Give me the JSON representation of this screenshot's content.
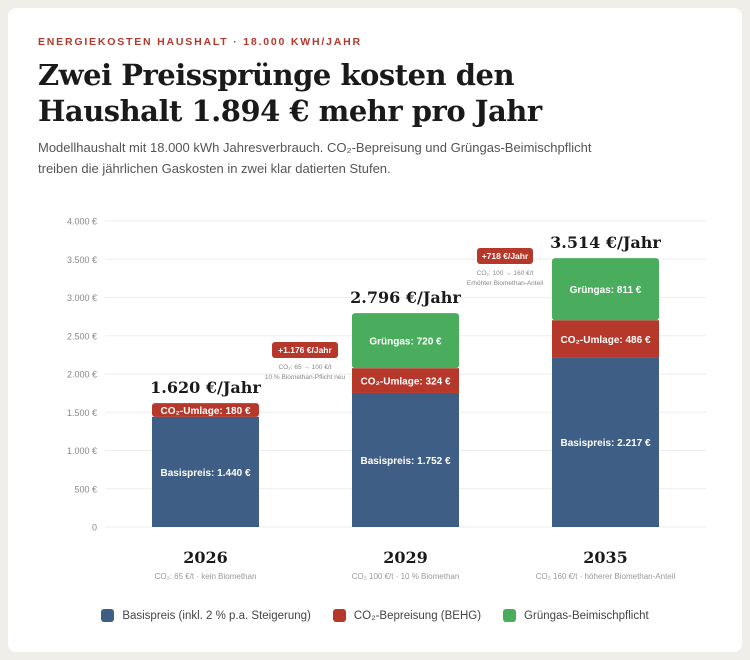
{
  "kicker": "ENERGIEKOSTEN HAUSHALT · 18.000 KWH/JAHR",
  "title": "Zwei Preissprünge kosten den Haushalt 1.894 € mehr pro Jahr",
  "subtitle": "Modellhaushalt mit 18.000 kWh Jahresverbrauch. CO₂-Bepreisung und Grüngas-Beimischpflicht treiben die jährlichen Gaskosten in zwei klar datierten Stufen.",
  "colors": {
    "basis": "#3f5e85",
    "co2": "#b5382b",
    "gruen": "#4aad5e"
  },
  "chart_data": {
    "type": "bar",
    "stacked": true,
    "categories": [
      "2026",
      "2029",
      "2035"
    ],
    "category_notes": [
      "CO₂: 65 €/t · kein Biomethan",
      "CO₂ 100 €/t · 10 % Biomethan",
      "CO₂ 160 €/t · höherer Biomethan-Anteil"
    ],
    "totals": [
      "1.620 €/Jahr",
      "2.796 €/Jahr",
      "3.514 €/Jahr"
    ],
    "total_values": [
      1620,
      2796,
      3514
    ],
    "series": [
      {
        "name": "Basispreis (inkl. 2 % p.a. Steigerung)",
        "key": "basis",
        "values": [
          1440,
          1752,
          2217
        ],
        "labels": [
          "Basispreis: 1.440 €",
          "Basispreis: 1.752 €",
          "Basispreis: 2.217 €"
        ]
      },
      {
        "name": "CO₂-Bepreisung (BEHG)",
        "key": "co2",
        "values": [
          180,
          324,
          486
        ],
        "labels": [
          "CO₂-Umlage: 180 €",
          "CO₂-Umlage: 324 €",
          "CO₂-Umlage: 486 €"
        ]
      },
      {
        "name": "Grüngas-Beimischpflicht",
        "key": "gruen",
        "values": [
          0,
          720,
          811
        ],
        "labels": [
          "",
          "Grüngas: 720 €",
          "Grüngas: 811 €"
        ]
      }
    ],
    "ylim": [
      0,
      4000
    ],
    "yticks": [
      0,
      500,
      1000,
      1500,
      2000,
      2500,
      3000,
      3500,
      4000
    ],
    "ytick_labels": [
      "0",
      "500 €",
      "1.000 €",
      "1.500 €",
      "2.000 €",
      "2.500 €",
      "3.000 €",
      "3.500 €",
      "4.000 €"
    ],
    "grid": true,
    "legend": "bottom",
    "annotations": [
      {
        "badge": "+1.176 €/Jahr",
        "lines": [
          "CO₂: 65 → 100 €/t",
          "10 % Biomethan-Pflicht neu"
        ]
      },
      {
        "badge": "+718 €/Jahr",
        "lines": [
          "CO₂: 100 → 160 €/t",
          "Erhöhter Biomethan-Anteil"
        ]
      }
    ]
  }
}
